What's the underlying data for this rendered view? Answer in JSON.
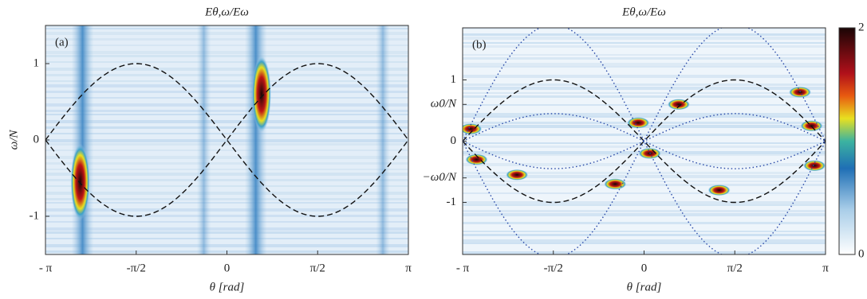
{
  "chart_data": [
    {
      "type": "heatmap",
      "title": "Eθ,ω/Eω",
      "panel_label": "(a)",
      "x_label": "θ [rad]",
      "y_label": "ω/N",
      "xlim": [
        -3.14159,
        3.14159
      ],
      "xticks": [
        {
          "value": -3.14159,
          "label": "- π"
        },
        {
          "value": -1.5708,
          "label": "-π/2"
        },
        0,
        {
          "value": 1.5708,
          "label": "π/2"
        },
        {
          "value": 3.14159,
          "label": "π"
        }
      ],
      "ylim": [
        -1.5,
        1.5
      ],
      "yticks": [
        -1,
        0,
        1
      ]
    },
    {
      "type": "heatmap",
      "title": "Eθ,ω/Eω",
      "panel_label": "(b)",
      "x_label": "θ [rad]",
      "xlim": [
        -3.14159,
        3.14159
      ],
      "xticks": [
        {
          "value": -3.14159,
          "label": "- π"
        },
        {
          "value": -1.5708,
          "label": "-π/2"
        },
        0,
        {
          "value": 1.5708,
          "label": "π/2"
        },
        {
          "value": 3.14159,
          "label": "π"
        }
      ],
      "ylim": [
        -1.85,
        1.85
      ],
      "yticks": [
        -1,
        {
          "value": -0.6,
          "label": "−ω0/N"
        },
        0,
        {
          "value": 0.6,
          "label": "ω0/N"
        },
        1
      ],
      "colorbar": {
        "lim": [
          0,
          2
        ],
        "ticks": [
          0,
          2
        ]
      }
    }
  ]
}
